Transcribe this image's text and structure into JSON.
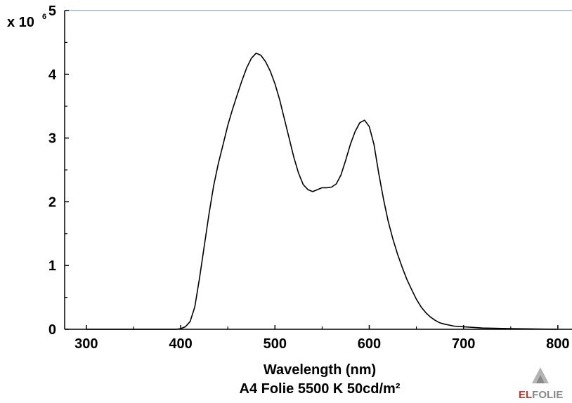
{
  "chart_data": {
    "type": "line",
    "xlabel": "Wavelength (nm)",
    "caption": "A4 Folie 5500 K 50cd/m²",
    "y_scale_label": "x 10",
    "y_scale_exponent": "6",
    "xlim": [
      277,
      815
    ],
    "ylim": [
      0,
      5
    ],
    "x_ticks": [
      300,
      400,
      500,
      600,
      700,
      800
    ],
    "x_tick_labels": [
      "300",
      "400",
      "500",
      "600",
      "700",
      "800"
    ],
    "y_ticks": [
      0,
      1,
      2,
      3,
      4,
      5
    ],
    "y_tick_labels": [
      "0",
      "1",
      "2",
      "3",
      "4",
      "5"
    ],
    "series": [
      {
        "color": "#000000",
        "points": [
          [
            300,
            0.0
          ],
          [
            350,
            0.0
          ],
          [
            395,
            0.0
          ],
          [
            400,
            0.01
          ],
          [
            405,
            0.04
          ],
          [
            410,
            0.12
          ],
          [
            415,
            0.35
          ],
          [
            420,
            0.8
          ],
          [
            425,
            1.3
          ],
          [
            430,
            1.8
          ],
          [
            435,
            2.25
          ],
          [
            440,
            2.6
          ],
          [
            445,
            2.9
          ],
          [
            450,
            3.2
          ],
          [
            455,
            3.45
          ],
          [
            460,
            3.68
          ],
          [
            465,
            3.9
          ],
          [
            470,
            4.1
          ],
          [
            475,
            4.25
          ],
          [
            480,
            4.33
          ],
          [
            485,
            4.3
          ],
          [
            490,
            4.2
          ],
          [
            495,
            4.05
          ],
          [
            500,
            3.85
          ],
          [
            505,
            3.6
          ],
          [
            510,
            3.3
          ],
          [
            515,
            3.0
          ],
          [
            520,
            2.7
          ],
          [
            525,
            2.45
          ],
          [
            530,
            2.27
          ],
          [
            535,
            2.19
          ],
          [
            540,
            2.16
          ],
          [
            545,
            2.19
          ],
          [
            550,
            2.22
          ],
          [
            555,
            2.22
          ],
          [
            560,
            2.23
          ],
          [
            565,
            2.28
          ],
          [
            570,
            2.42
          ],
          [
            575,
            2.65
          ],
          [
            580,
            2.9
          ],
          [
            585,
            3.1
          ],
          [
            590,
            3.24
          ],
          [
            595,
            3.28
          ],
          [
            600,
            3.18
          ],
          [
            605,
            2.9
          ],
          [
            610,
            2.45
          ],
          [
            615,
            2.05
          ],
          [
            620,
            1.7
          ],
          [
            625,
            1.42
          ],
          [
            630,
            1.18
          ],
          [
            635,
            0.97
          ],
          [
            640,
            0.78
          ],
          [
            645,
            0.62
          ],
          [
            650,
            0.47
          ],
          [
            655,
            0.35
          ],
          [
            660,
            0.26
          ],
          [
            665,
            0.19
          ],
          [
            670,
            0.14
          ],
          [
            675,
            0.1
          ],
          [
            680,
            0.08
          ],
          [
            690,
            0.05
          ],
          [
            700,
            0.04
          ],
          [
            720,
            0.02
          ],
          [
            750,
            0.01
          ],
          [
            800,
            0.0
          ]
        ]
      }
    ]
  },
  "logo": {
    "text_el": "EL",
    "text_folie": "FOLIE",
    "colors": {
      "el": "#c0392b",
      "folie": "#888888",
      "triangle_light": "#b5b5b5",
      "triangle_dark": "#8a8a8a"
    }
  }
}
